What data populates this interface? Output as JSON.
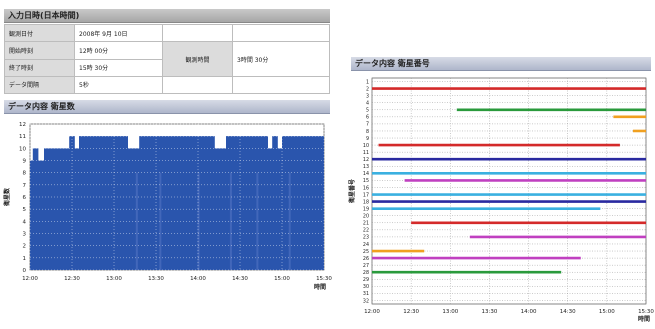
{
  "left_panel": {
    "header": "入力日時(日本時間)",
    "rows": [
      {
        "label": "観測日付",
        "value": "2008年 9月 10日"
      },
      {
        "label": "開始時刻",
        "value": "12時 00分"
      },
      {
        "label": "終了時刻",
        "value": "15時 30分"
      },
      {
        "label": "データ間隔",
        "value": "5秒"
      }
    ],
    "duration_label": "観測時間",
    "duration_value": "3時間 30分"
  },
  "left_chart": {
    "header": "データ内容 衛星数",
    "ylabel": "衛星数",
    "xlabel": "時間",
    "colors": {
      "fill": "#2a55ad",
      "stripe": "#5577c4",
      "grid": "#ffffff"
    }
  },
  "right_chart": {
    "header": "データ内容 衛星番号",
    "ylabel": "衛星番号",
    "xlabel": "時間",
    "colors": {
      "grid": "#999999"
    }
  },
  "chart_data": [
    {
      "type": "area",
      "title": "データ内容 衛星数",
      "xlabel": "時間",
      "ylabel": "衛星数",
      "ylim": [
        0,
        12
      ],
      "xlim": [
        "12:00",
        "15:30"
      ],
      "x_ticks": [
        "12:00",
        "12:30",
        "13:00",
        "13:30",
        "14:00",
        "14:30",
        "15:00",
        "15:30"
      ],
      "y_ticks": [
        "0",
        "1",
        "2",
        "3",
        "4",
        "5",
        "6",
        "7",
        "8",
        "9",
        "10",
        "11",
        "12"
      ],
      "grid": true,
      "series": [
        {
          "x": [
            "12:00",
            "12:02",
            "12:06",
            "12:10",
            "12:25",
            "12:28",
            "12:32",
            "12:35",
            "12:40",
            "13:10",
            "13:18",
            "13:22",
            "13:45",
            "14:00",
            "14:12",
            "14:20",
            "14:45",
            "14:50",
            "14:53",
            "14:57",
            "15:00",
            "15:06",
            "15:08",
            "15:30"
          ],
          "values": [
            9,
            10,
            9,
            10,
            10,
            11,
            10,
            11,
            11,
            10,
            11,
            11,
            11,
            11,
            10,
            11,
            11,
            10,
            11,
            10,
            11,
            11,
            11,
            11
          ]
        }
      ]
    },
    {
      "type": "line",
      "title": "データ内容 衛星番号",
      "xlabel": "時間",
      "ylabel": "衛星番号",
      "xlim": [
        "12:00",
        "15:30"
      ],
      "ylim": [
        1,
        32
      ],
      "x_ticks": [
        "12:00",
        "12:30",
        "13:00",
        "13:30",
        "14:00",
        "14:30",
        "15:00",
        "15:30"
      ],
      "y_ticks": [
        "1",
        "2",
        "3",
        "4",
        "5",
        "6",
        "7",
        "8",
        "9",
        "10",
        "11",
        "12",
        "13",
        "14",
        "15",
        "16",
        "17",
        "18",
        "19",
        "20",
        "21",
        "22",
        "23",
        "24",
        "25",
        "26",
        "27",
        "28",
        "29",
        "30",
        "31",
        "32"
      ],
      "grid": true,
      "segments": [
        {
          "sat": "2",
          "start": "12:00",
          "end": "15:30",
          "color": "#d42a2a"
        },
        {
          "sat": "5",
          "start": "13:05",
          "end": "15:30",
          "color": "#2a9a3c"
        },
        {
          "sat": "6",
          "start": "15:05",
          "end": "15:30",
          "color": "#f0a020"
        },
        {
          "sat": "8",
          "start": "15:20",
          "end": "15:30",
          "color": "#f0a020"
        },
        {
          "sat": "10",
          "start": "12:05",
          "end": "15:10",
          "color": "#d42a2a"
        },
        {
          "sat": "12",
          "start": "12:00",
          "end": "15:30",
          "color": "#2a2aa0"
        },
        {
          "sat": "14",
          "start": "12:00",
          "end": "15:30",
          "color": "#3ab0e0"
        },
        {
          "sat": "15",
          "start": "12:25",
          "end": "15:30",
          "color": "#c040c0"
        },
        {
          "sat": "17",
          "start": "12:00",
          "end": "15:30",
          "color": "#3ab0e0"
        },
        {
          "sat": "18",
          "start": "12:00",
          "end": "15:30",
          "color": "#2a2aa0"
        },
        {
          "sat": "19",
          "start": "12:00",
          "end": "14:55",
          "color": "#3ab0e0"
        },
        {
          "sat": "21",
          "start": "12:30",
          "end": "15:30",
          "color": "#d42a2a"
        },
        {
          "sat": "23",
          "start": "13:15",
          "end": "15:30",
          "color": "#c040c0"
        },
        {
          "sat": "25",
          "start": "12:00",
          "end": "12:40",
          "color": "#f0a020"
        },
        {
          "sat": "26",
          "start": "12:00",
          "end": "14:40",
          "color": "#c040c0"
        },
        {
          "sat": "28",
          "start": "12:00",
          "end": "14:25",
          "color": "#2a9a3c"
        }
      ]
    }
  ]
}
